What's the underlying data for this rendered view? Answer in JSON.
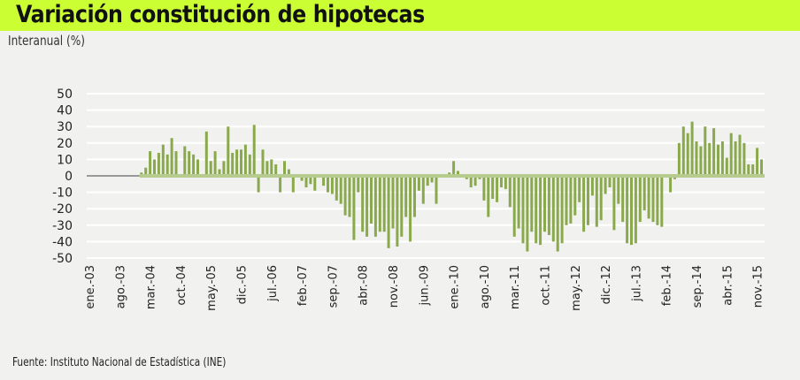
{
  "header": {
    "title": "Variación constitución de hipotecas",
    "unit": "Interanual (%)"
  },
  "footer": {
    "source": "Fuente: Instituto Nacional de Estadística (INE)"
  },
  "colors": {
    "banner": "#ccff33",
    "bars": "#8aa84c",
    "zero_line": "#b5cc8e",
    "no_data_line": "#999999",
    "background": "#f1f2f0",
    "grid": "#ffffff"
  },
  "chart_data": {
    "type": "bar",
    "title": "Variación constitución de hipotecas",
    "ylabel": "Interanual (%)",
    "xlabel": "",
    "ylim": [
      -50,
      50
    ],
    "yticks": [
      50,
      40,
      30,
      20,
      10,
      0,
      -10,
      -20,
      -30,
      -40,
      -50
    ],
    "grid": true,
    "x_start": "ene.-03",
    "frequency": "monthly",
    "xtick_labels": [
      "ene.-03",
      "ago.-03",
      "mar.-04",
      "oct.-04",
      "may.-05",
      "dic.-05",
      "jul.-06",
      "feb.-07",
      "sep.-07",
      "abr.-08",
      "nov.-08",
      "jun.-09",
      "ene.-10",
      "ago.-10",
      "mar.-11",
      "oct.-11",
      "may.-12",
      "dic.-12",
      "jul.-13",
      "feb.-14",
      "sep.-14",
      "abr.-15",
      "nov.-15"
    ],
    "values": [
      null,
      null,
      null,
      null,
      null,
      null,
      null,
      null,
      null,
      null,
      null,
      null,
      2,
      5,
      15,
      10,
      14,
      19,
      13,
      23,
      15,
      0,
      18,
      15,
      13,
      10,
      0,
      27,
      9,
      15,
      4,
      9,
      30,
      14,
      16,
      16,
      19,
      13,
      31,
      -10,
      16,
      9,
      10,
      7,
      -10,
      9,
      4,
      -10,
      0,
      -3,
      -7,
      -5,
      -9,
      -1,
      -6,
      -10,
      -11,
      -15,
      -17,
      -24,
      -25,
      -39,
      -10,
      -34,
      -37,
      -29,
      -37,
      -34,
      -34,
      -44,
      -32,
      -43,
      -37,
      -25,
      -40,
      -25,
      -9,
      -17,
      -6,
      -4,
      -17,
      1,
      -1,
      2,
      9,
      3,
      0,
      -2,
      -7,
      -6,
      -2,
      -15,
      -25,
      -14,
      -16,
      -7,
      -8,
      -19,
      -37,
      -32,
      -41,
      -46,
      -34,
      -41,
      -42,
      -34,
      -36,
      -40,
      -46,
      -41,
      -30,
      -29,
      -24,
      -16,
      -34,
      -30,
      -12,
      -31,
      -27,
      -11,
      -7,
      -33,
      -17,
      -28,
      -41,
      -42,
      -41,
      -28,
      -21,
      -26,
      -28,
      -30,
      -31,
      1,
      -10,
      -2,
      20,
      30,
      26,
      33,
      21,
      18,
      30,
      20,
      29,
      19,
      21,
      11,
      26,
      21,
      25,
      20,
      7,
      7,
      17,
      10
    ]
  }
}
